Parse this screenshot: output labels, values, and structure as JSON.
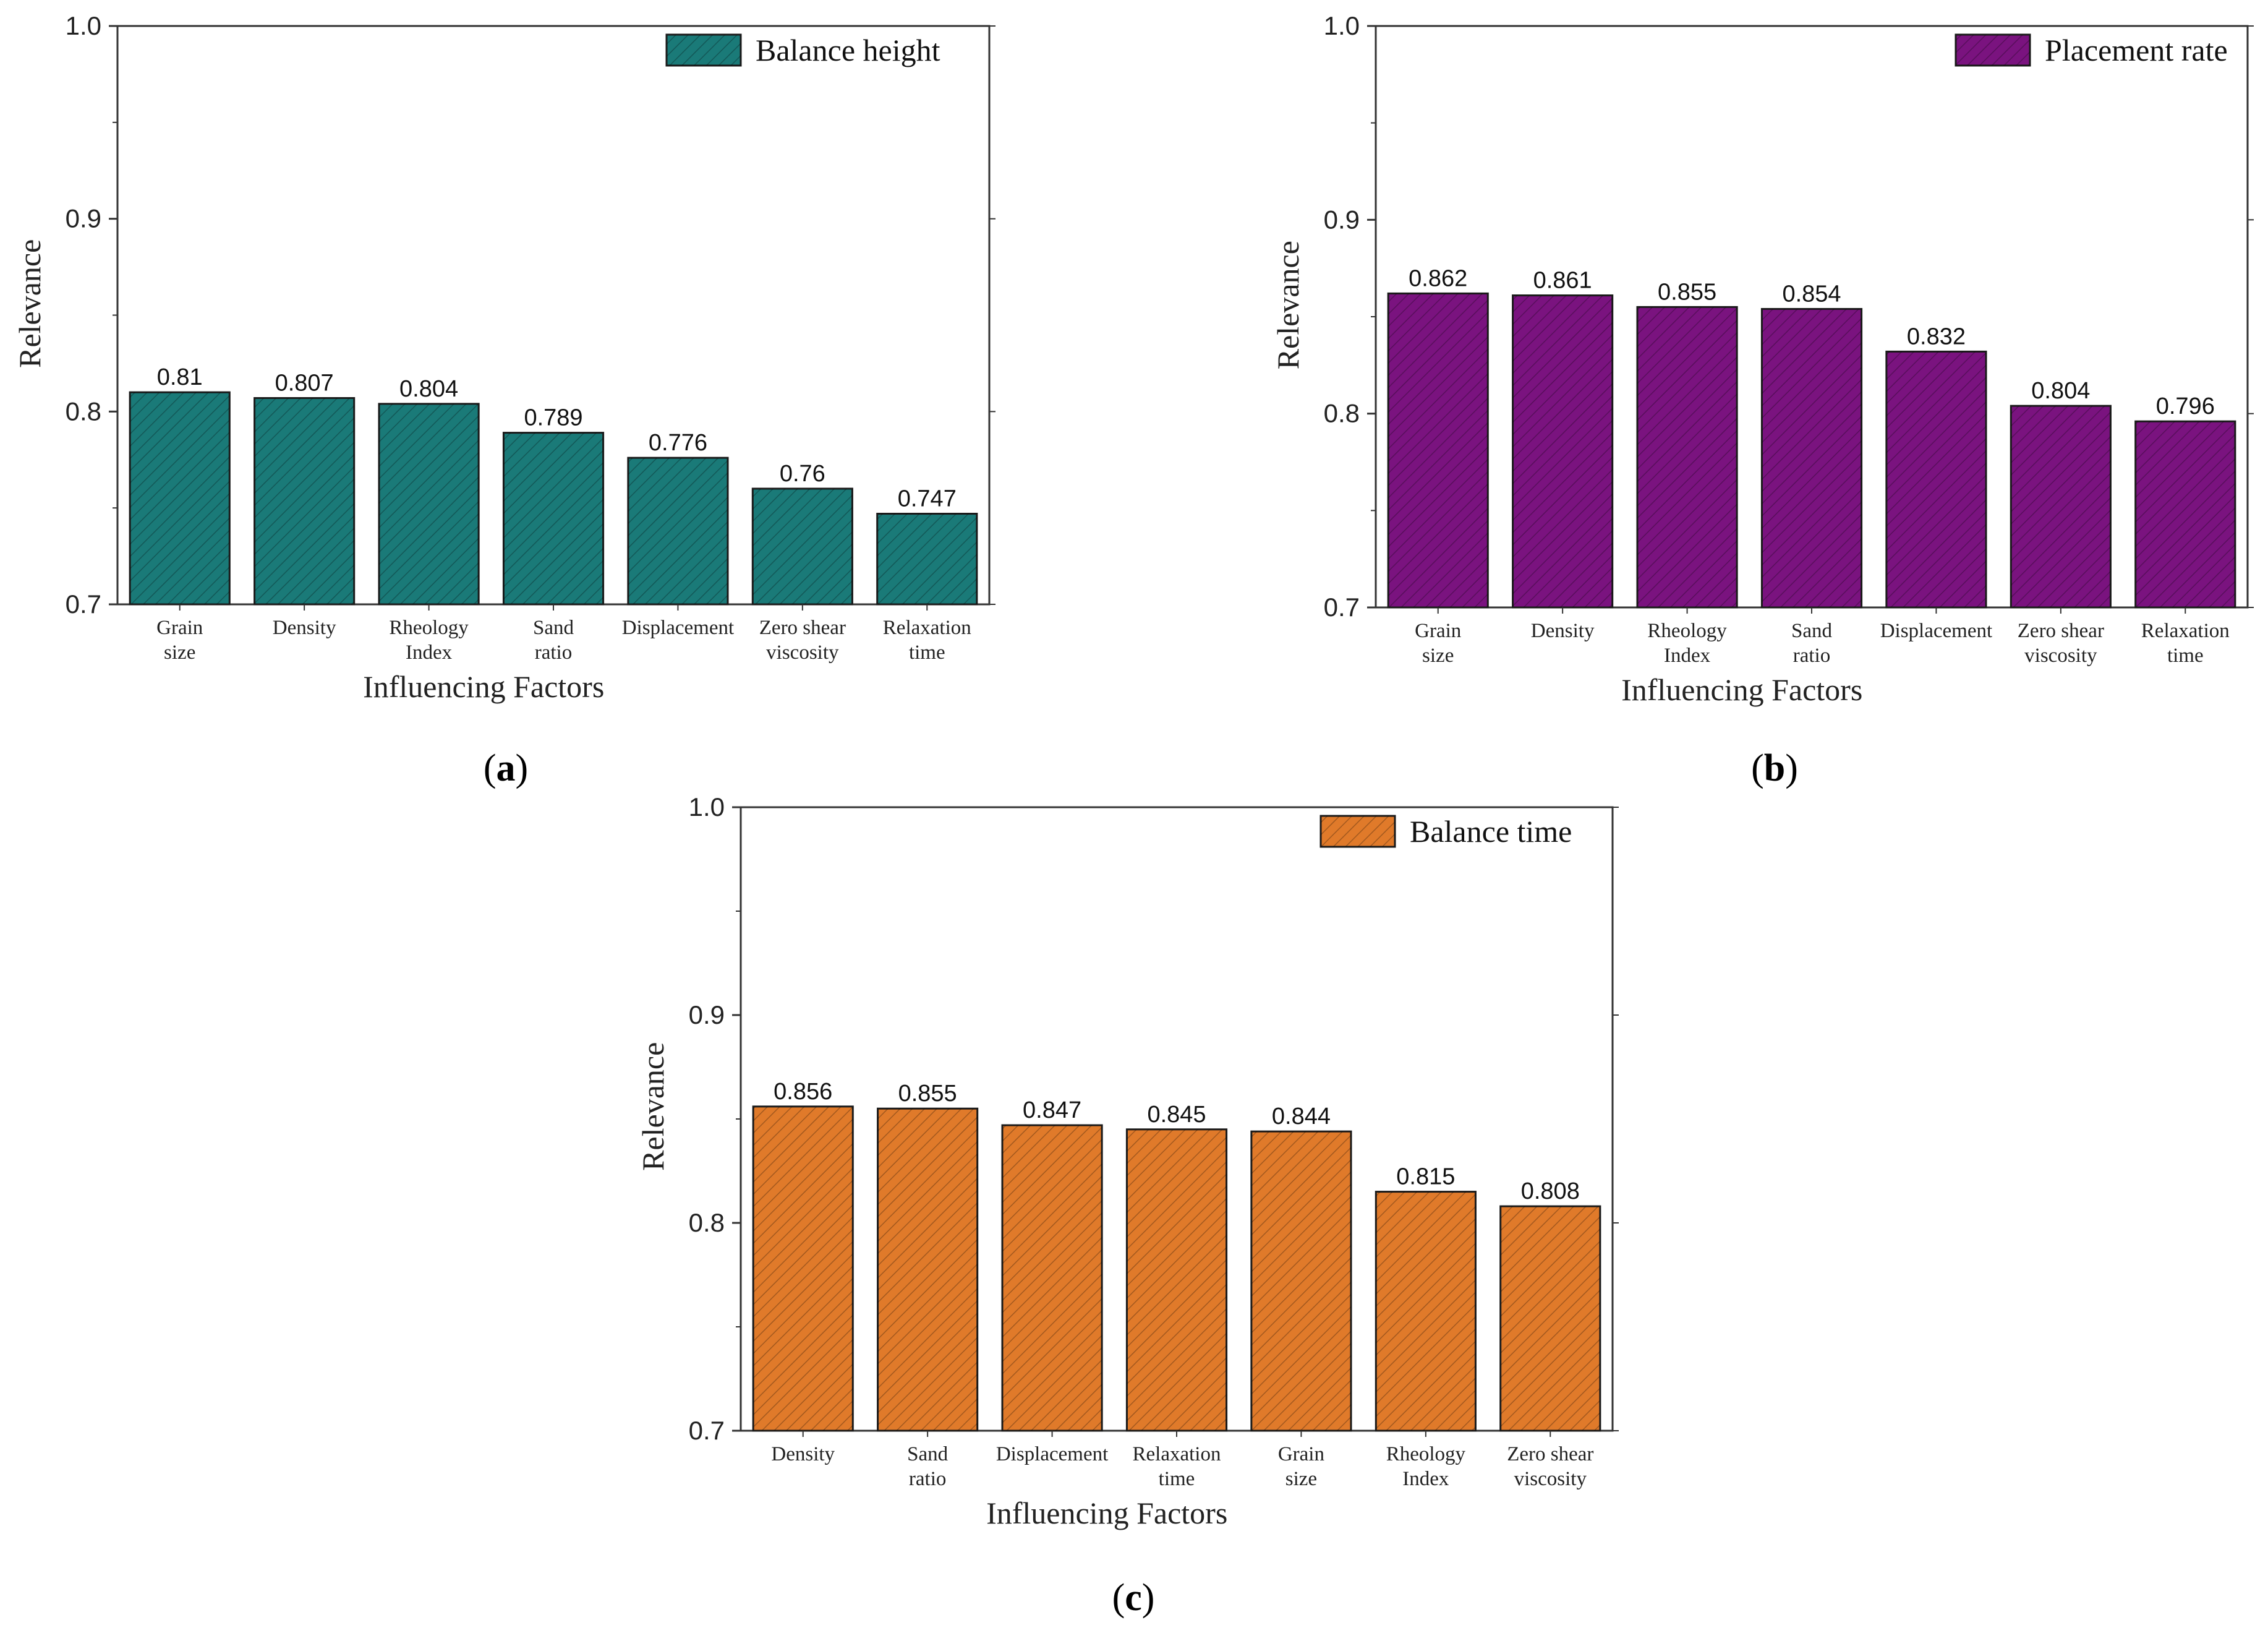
{
  "colors": {
    "teal": "#1a7a78",
    "purple": "#7a137f",
    "orange": "#e07a2a"
  },
  "chart_data": [
    {
      "type": "bar",
      "caption_letter": "a",
      "series_name": "Balance height",
      "color": "#1a7a78",
      "xlabel": "Influencing Factors",
      "ylabel": "Relevance",
      "ylim": [
        0.7,
        1.0
      ],
      "yticks": [
        "0.7",
        "0.8",
        "0.9",
        "1.0"
      ],
      "categories": [
        [
          "Grain",
          "size"
        ],
        [
          "Density"
        ],
        [
          "Rheology",
          "Index"
        ],
        [
          "Sand",
          "ratio"
        ],
        [
          "Displacement"
        ],
        [
          "Zero shear",
          "viscosity"
        ],
        [
          "Relaxation",
          "time"
        ]
      ],
      "values": [
        0.81,
        0.807,
        0.804,
        0.789,
        0.776,
        0.76,
        0.747
      ],
      "value_labels": [
        "0.81",
        "0.807",
        "0.804",
        "0.789",
        "0.776",
        "0.76",
        "0.747"
      ],
      "legend_position": "top-right"
    },
    {
      "type": "bar",
      "caption_letter": "b",
      "series_name": "Placement rate",
      "color": "#7a137f",
      "xlabel": "Influencing Factors",
      "ylabel": "Relevance",
      "ylim": [
        0.7,
        1.0
      ],
      "yticks": [
        "0.7",
        "0.8",
        "0.9",
        "1.0"
      ],
      "categories": [
        [
          "Grain",
          "size"
        ],
        [
          "Density"
        ],
        [
          "Rheology",
          "Index"
        ],
        [
          "Sand",
          "ratio"
        ],
        [
          "Displacement"
        ],
        [
          "Zero shear",
          "viscosity"
        ],
        [
          "Relaxation",
          "time"
        ]
      ],
      "values": [
        0.862,
        0.861,
        0.855,
        0.854,
        0.832,
        0.804,
        0.796
      ],
      "value_labels": [
        "0.862",
        "0.861",
        "0.855",
        "0.854",
        "0.832",
        "0.804",
        "0.796"
      ],
      "legend_position": "top-right"
    },
    {
      "type": "bar",
      "caption_letter": "c",
      "series_name": "Balance time",
      "color": "#e07a2a",
      "xlabel": "Influencing Factors",
      "ylabel": "Relevance",
      "ylim": [
        0.7,
        1.0
      ],
      "yticks": [
        "0.7",
        "0.8",
        "0.9",
        "1.0"
      ],
      "categories": [
        [
          "Density"
        ],
        [
          "Sand",
          "ratio"
        ],
        [
          "Displacement"
        ],
        [
          "Relaxation",
          "time"
        ],
        [
          "Grain",
          "size"
        ],
        [
          "Rheology",
          "Index"
        ],
        [
          "Zero shear",
          "viscosity"
        ]
      ],
      "values": [
        0.856,
        0.855,
        0.847,
        0.845,
        0.844,
        0.815,
        0.808
      ],
      "value_labels": [
        "0.856",
        "0.855",
        "0.847",
        "0.845",
        "0.844",
        "0.815",
        "0.808"
      ],
      "legend_position": "top-right"
    }
  ]
}
